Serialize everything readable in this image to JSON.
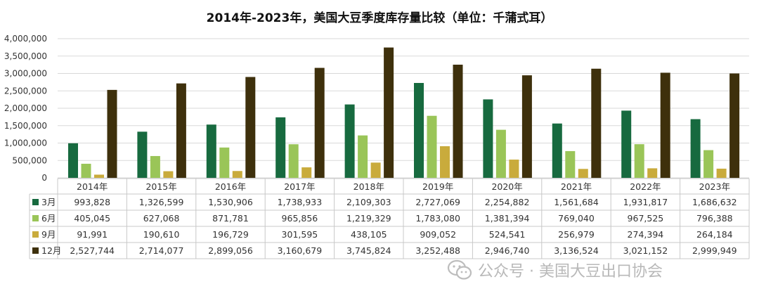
{
  "chart_data": {
    "type": "bar",
    "title": "2014年-2023年，美国大豆季度库存量比较（单位：千蒲式耳）",
    "categories": [
      "2014年",
      "2015年",
      "2016年",
      "2017年",
      "2018年",
      "2019年",
      "2020年",
      "2021年",
      "2022年",
      "2023年"
    ],
    "series": [
      {
        "name": "3月",
        "color": "#176a3f",
        "values": [
          993828,
          1326599,
          1530906,
          1738933,
          2109303,
          2727069,
          2254882,
          1561684,
          1931817,
          1686632
        ],
        "labels": [
          "993,828",
          "1,326,599",
          "1,530,906",
          "1,738,933",
          "2,109,303",
          "2,727,069",
          "2,254,882",
          "1,561,684",
          "1,931,817",
          "1,686,632"
        ]
      },
      {
        "name": "6月",
        "color": "#9ac558",
        "values": [
          405045,
          627068,
          871781,
          965856,
          1219329,
          1783080,
          1381394,
          769040,
          967525,
          796388
        ],
        "labels": [
          "405,045",
          "627,068",
          "871,781",
          "965,856",
          "1,219,329",
          "1,783,080",
          "1,381,394",
          "769,040",
          "967,525",
          "796,388"
        ]
      },
      {
        "name": "9月",
        "color": "#c9ab3c",
        "values": [
          91991,
          190610,
          196729,
          301595,
          438105,
          909052,
          524541,
          256979,
          274394,
          264184
        ],
        "labels": [
          "91,991",
          "190,610",
          "196,729",
          "301,595",
          "438,105",
          "909,052",
          "524,541",
          "256,979",
          "274,394",
          "264,184"
        ]
      },
      {
        "name": "12月",
        "color": "#3e300c",
        "values": [
          2527744,
          2714077,
          2899056,
          3160679,
          3745824,
          3252488,
          2946740,
          3136524,
          3021152,
          2999949
        ],
        "labels": [
          "2,527,744",
          "2,714,077",
          "2,899,056",
          "3,160,679",
          "3,745,824",
          "3,252,488",
          "2,946,740",
          "3,136,524",
          "3,021,152",
          "2,999,949"
        ]
      }
    ],
    "ylim": [
      0,
      4000000
    ],
    "yticks": [
      "0",
      "500,000",
      "1,000,000",
      "1,500,000",
      "2,000,000",
      "2,500,000",
      "3,000,000",
      "3,500,000",
      "4,000,000"
    ],
    "grid": true,
    "legend": "data-table-left"
  },
  "watermark": {
    "text": "公众号 · 美国大豆出口协会",
    "icon": "wechat-icon"
  }
}
